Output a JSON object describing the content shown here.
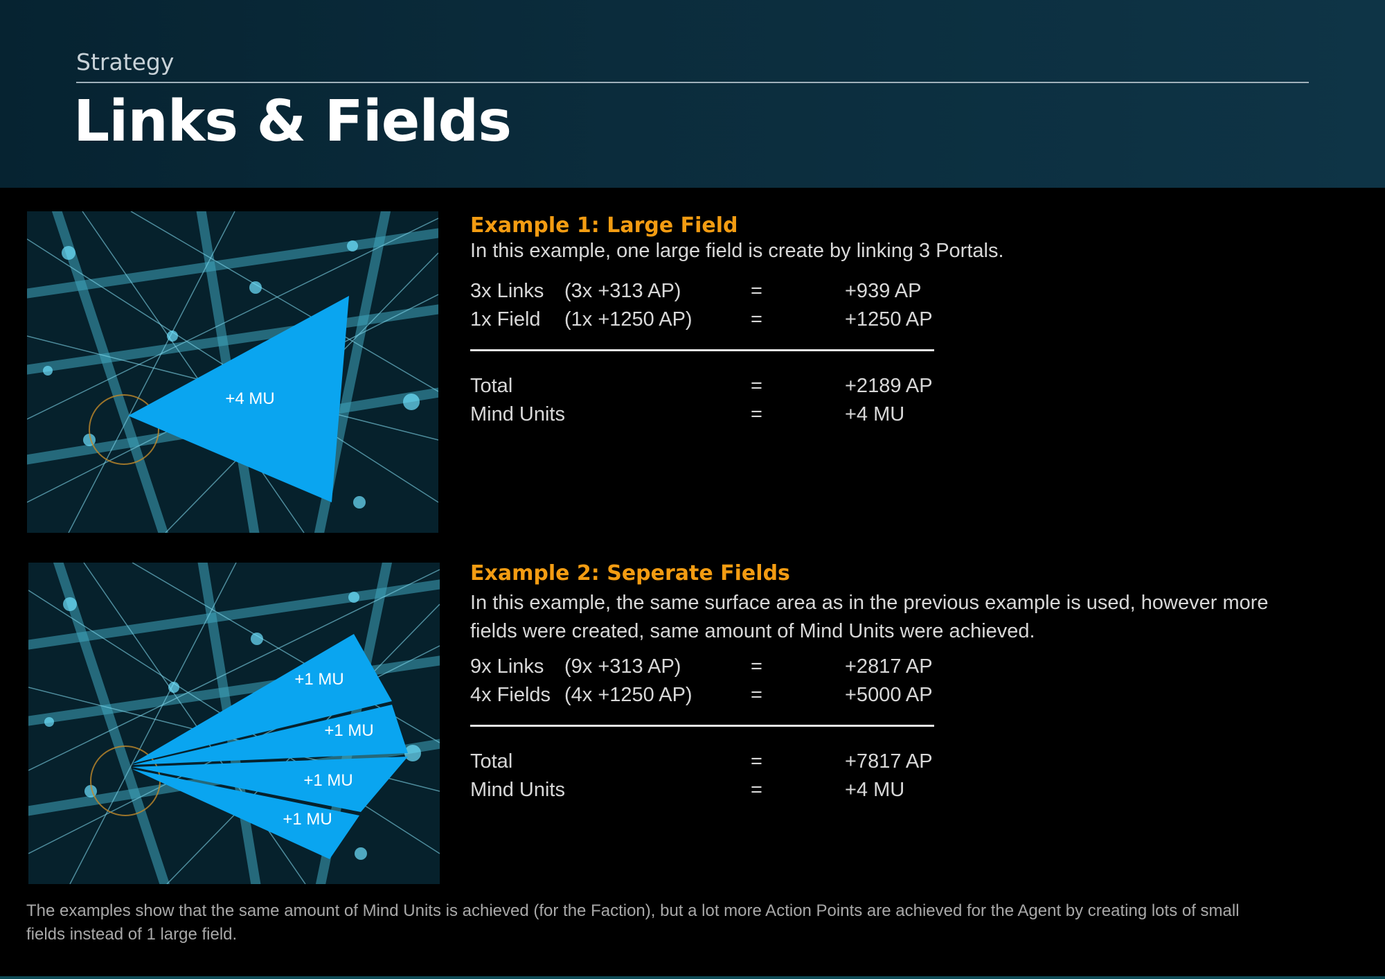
{
  "header": {
    "section_label": "Strategy",
    "title": "Links & Fields"
  },
  "example1": {
    "title": "Example 1: Large Field",
    "description": "In this example, one large field is create by linking 3 Portals.",
    "map_label": "+4 MU",
    "rows": [
      {
        "label": "3x Links",
        "detail": "(3x +313 AP)",
        "eq": "=",
        "value": "+939 AP"
      },
      {
        "label": "1x Field",
        "detail": "(1x +1250 AP)",
        "eq": "=",
        "value": "+1250 AP"
      }
    ],
    "totals": [
      {
        "label": "Total",
        "eq": "=",
        "value": "+2189 AP"
      },
      {
        "label": "Mind Units",
        "eq": "=",
        "value": "+4 MU"
      }
    ]
  },
  "example2": {
    "title": "Example 2: Seperate Fields",
    "description": "In this example, the same surface area as in the previous example is used, however more fields were created, same amount of Mind Units were achieved.",
    "map_labels": [
      "+1 MU",
      "+1 MU",
      "+1 MU",
      "+1 MU"
    ],
    "rows": [
      {
        "label": "9x Links",
        "detail": "(9x +313 AP)",
        "eq": "=",
        "value": "+2817 AP"
      },
      {
        "label": "4x Fields",
        "detail": "(4x +1250 AP)",
        "eq": "=",
        "value": "+5000 AP"
      }
    ],
    "totals": [
      {
        "label": "Total",
        "eq": "=",
        "value": "+7817 AP"
      },
      {
        "label": "Mind Units",
        "eq": "=",
        "value": "+4 MU"
      }
    ]
  },
  "footer": "The examples show that the same amount of Mind Units is achieved (for the Faction), but a lot more Action Points are achieved for the Agent by creating lots of small fields instead of 1 large field.",
  "colors": {
    "accent": "#f39c12",
    "field": "#0aa5f0",
    "map_bg": "#06212c",
    "header_bg": "#0b2c3c"
  }
}
